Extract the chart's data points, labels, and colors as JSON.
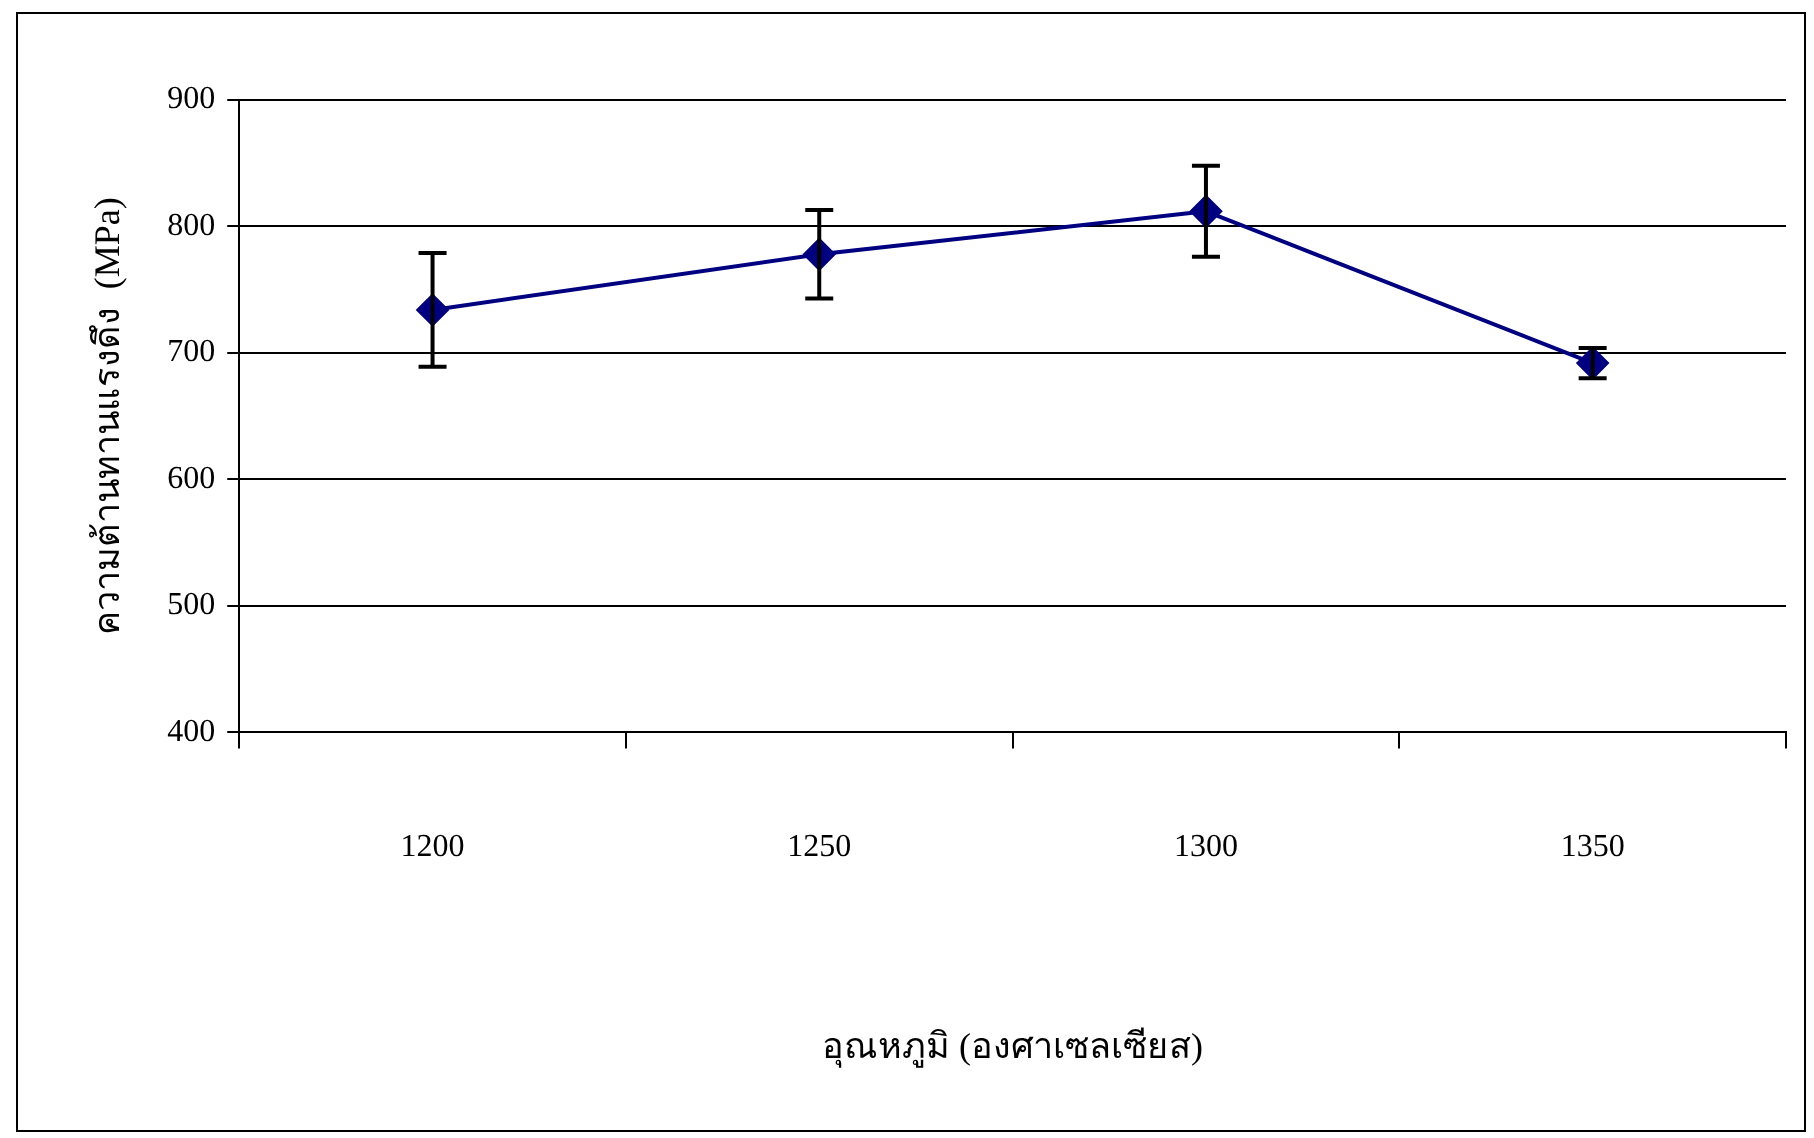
{
  "chart_data": {
    "type": "line",
    "xlabel": "อุณหภูมิ (องศาเซลเซียส)",
    "ylabel": "ความต้านทานแรงดึง  (MPa)",
    "categories": [
      "1200",
      "1250",
      "1300",
      "1350"
    ],
    "series": [
      {
        "color": "#000080",
        "values": [
          734,
          778,
          812,
          692
        ],
        "errors": [
          45,
          35,
          36,
          12
        ]
      }
    ],
    "ylim": [
      400,
      900
    ],
    "yticks": [
      400,
      500,
      600,
      700,
      800,
      900
    ],
    "grid": "y",
    "legend": false,
    "marker": "diamond",
    "line_style": "solid"
  }
}
